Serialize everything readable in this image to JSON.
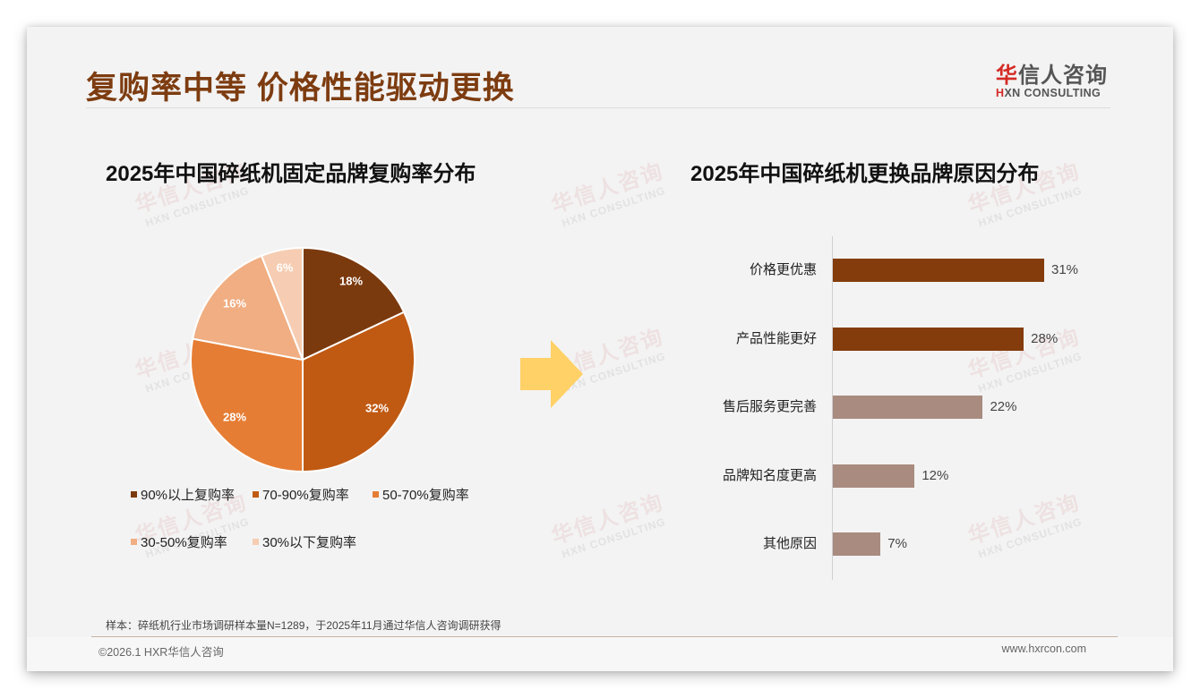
{
  "header": {
    "title": "复购率中等 价格性能驱动更换",
    "logo_cn_accent": "华",
    "logo_cn_rest": "信人咨询",
    "logo_en_accent": "H",
    "logo_en_rest": "XN CONSULTING"
  },
  "watermark": {
    "cn": "华信人咨询",
    "en": "HXN CONSULTING"
  },
  "colors": {
    "title": "#7d3c10",
    "pie": [
      "#7b3a0e",
      "#c05a13",
      "#e67d34",
      "#f0ae82",
      "#f6cdb2"
    ],
    "bar_top": "#843c0c",
    "bar_other": "#a98b80",
    "arrow": "#ffd166"
  },
  "left_chart": {
    "title": "2025年中国碎纸机固定品牌复购率分布",
    "legend": [
      "90%以上复购率",
      "70-90%复购率",
      "50-70%复购率",
      "30-50%复购率",
      "30%以下复购率"
    ],
    "labels": [
      "18%",
      "32%",
      "28%",
      "16%",
      "6%"
    ]
  },
  "right_chart": {
    "title": "2025年中国碎纸机更换品牌原因分布",
    "categories": [
      "价格更优惠",
      "产品性能更好",
      "售后服务更完善",
      "品牌知名度更高",
      "其他原因"
    ],
    "labels": [
      "31%",
      "28%",
      "22%",
      "12%",
      "7%"
    ]
  },
  "chart_data": [
    {
      "type": "pie",
      "title": "2025年中国碎纸机固定品牌复购率分布",
      "categories": [
        "90%以上复购率",
        "70-90%复购率",
        "50-70%复购率",
        "30-50%复购率",
        "30%以下复购率"
      ],
      "values": [
        18,
        32,
        28,
        16,
        6
      ],
      "unit": "%",
      "legend_position": "bottom",
      "start_angle": "12 o'clock, clockwise"
    },
    {
      "type": "bar",
      "orientation": "horizontal",
      "title": "2025年中国碎纸机更换品牌原因分布",
      "categories": [
        "价格更优惠",
        "产品性能更好",
        "售后服务更完善",
        "品牌知名度更高",
        "其他原因"
      ],
      "values": [
        31,
        28,
        22,
        12,
        7
      ],
      "unit": "%",
      "xlabel": "",
      "ylabel": "",
      "xlim": [
        0,
        35
      ],
      "grid": false
    }
  ],
  "footer": {
    "note": "样本：碎纸机行业市场调研样本量N=1289，于2025年11月通过华信人咨询调研获得",
    "copyright": "©2026.1 HXR华信人咨询",
    "website": "www.hxrcon.com"
  }
}
